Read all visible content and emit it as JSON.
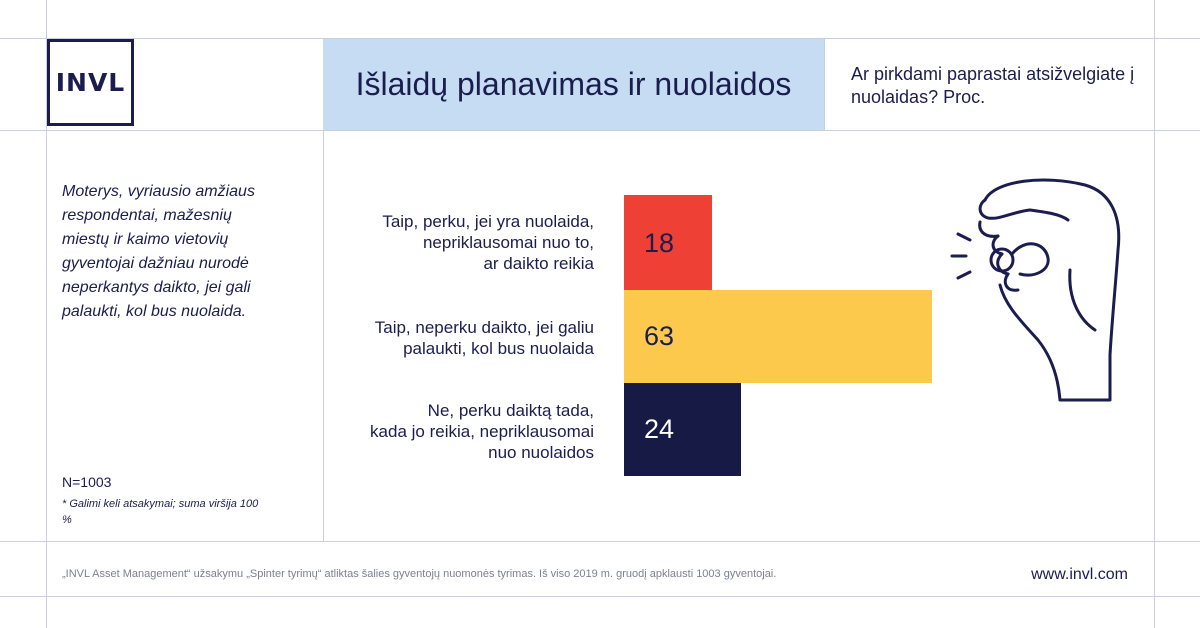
{
  "logo": {
    "text": "INVL"
  },
  "header": {
    "title": "Išlaidų planavimas ir nuolaidos",
    "question": "Ar pirkdami paprastai atsižvelgiate į nuolaidas? Proc."
  },
  "sidebar": {
    "note": "Moterys, vyriausio amžiaus respondentai, mažesnių miestų ir kaimo vietovių gyventojai dažniau nurodė neperkantys daikto, jei gali palaukti, kol bus nuolaida.",
    "sample": "N=1003",
    "footnote": "* Galimi keli atsakymai; suma viršija 100 %"
  },
  "chart_data": {
    "type": "bar",
    "orientation": "horizontal",
    "categories": [
      "Taip, perku, jei yra nuolaida, nepriklausomai nuo to, ar daikto reikia",
      "Taip, neperku daikto, jei galiu palaukti, kol bus nuolaida",
      "Ne, perku daiktą tada, kada jo reikia, nepriklausomai nuo nuolaidos"
    ],
    "values": [
      18,
      63,
      24
    ],
    "colors": [
      "#ef4035",
      "#fdc94d",
      "#161a45"
    ],
    "value_text_colors": [
      "#1b1d4e",
      "#1b1d4e",
      "#ffffff"
    ],
    "title": "Išlaidų planavimas ir nuolaidos",
    "xlabel": "",
    "ylabel": "",
    "xlim": [
      0,
      63
    ],
    "grid": false,
    "legend": "none"
  },
  "labels": {
    "bar1": [
      "Taip, perku, jei yra nuolaida,",
      "nepriklausomai nuo to,",
      "ar daikto reikia"
    ],
    "bar2": [
      "Taip, neperku daikto, jei galiu",
      "palaukti, kol bus nuolaida"
    ],
    "bar3": [
      "Ne, perku daiktą tada,",
      "kada jo reikia, nepriklausomai",
      "nuo nuolaidos"
    ]
  },
  "footer": {
    "source": "„INVL Asset Management“ užsakymu „Spinter tyrimų“ atliktas šalies gyventojų nuomonės tyrimas. Iš viso 2019 m. gruodį apklausti 1003 gyventojai.",
    "url": "www.invl.com"
  },
  "illustration": {
    "icon": "hand-pinching-coin-icon"
  }
}
